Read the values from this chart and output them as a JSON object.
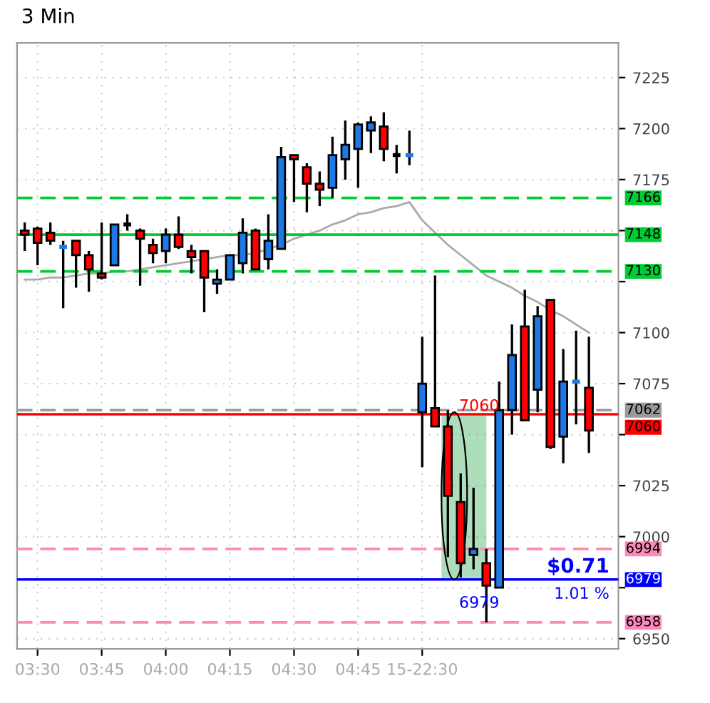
{
  "chart_data": {
    "type": "candlestick",
    "title": "3 Min",
    "categories": [
      null,
      "03:30",
      null,
      null,
      null,
      null,
      "03:45",
      null,
      null,
      null,
      null,
      "04:00",
      null,
      null,
      null,
      null,
      "04:15",
      null,
      null,
      null,
      null,
      "04:30",
      null,
      null,
      null,
      null,
      "04:45",
      null,
      null,
      null,
      null,
      "15-22:30",
      null,
      null,
      null,
      null,
      null,
      null,
      null,
      null,
      null,
      null,
      null,
      null,
      null
    ],
    "ohlc": [
      [
        7150,
        7154,
        7140,
        7148
      ],
      [
        7151,
        7152,
        7133,
        7144
      ],
      [
        7149,
        7154,
        7143,
        7145
      ],
      [
        7142,
        7145,
        7112,
        7142
      ],
      [
        7145,
        7145,
        7122,
        7138
      ],
      [
        7138,
        7140,
        7120,
        7131
      ],
      [
        7129,
        7154,
        7126,
        7127
      ],
      [
        7133,
        7153,
        7133,
        7153
      ],
      [
        7153,
        7158,
        7150,
        7153
      ],
      [
        7150,
        7151,
        7123,
        7146
      ],
      [
        7143,
        7146,
        7134,
        7139
      ],
      [
        7140,
        7151,
        7134,
        7148
      ],
      [
        7148,
        7157,
        7141,
        7142
      ],
      [
        7140,
        7143,
        7129,
        7137
      ],
      [
        7140,
        7140,
        7110,
        7127
      ],
      [
        7124,
        7131,
        7119,
        7126
      ],
      [
        7126,
        7138,
        7126,
        7138
      ],
      [
        7134,
        7156,
        7129,
        7149
      ],
      [
        7150,
        7151,
        7131,
        7131
      ],
      [
        7136,
        7158,
        7131,
        7145
      ],
      [
        7141,
        7191,
        7141,
        7186
      ],
      [
        7187,
        7187,
        7164,
        7185
      ],
      [
        7181,
        7183,
        7159,
        7173
      ],
      [
        7173,
        7179,
        7162,
        7170
      ],
      [
        7171,
        7196,
        7166,
        7187
      ],
      [
        7185,
        7204,
        7175,
        7192
      ],
      [
        7190,
        7203,
        7171,
        7202
      ],
      [
        7199,
        7206,
        7188,
        7203
      ],
      [
        7201,
        7208,
        7184,
        7190
      ],
      [
        7187,
        7192,
        7178,
        7187
      ],
      [
        7187,
        7199,
        7182,
        7187
      ],
      [
        7061,
        7098,
        7034,
        7075
      ],
      [
        7063,
        7128,
        7054,
        7054
      ],
      [
        7054,
        7062,
        6990,
        7020
      ],
      [
        7017,
        7031,
        6980,
        6987
      ],
      [
        6991,
        7024,
        6984,
        6994
      ],
      [
        6987,
        6994,
        6958,
        6976
      ],
      [
        6975,
        7076,
        6975,
        7062
      ],
      [
        7062,
        7104,
        7050,
        7089
      ],
      [
        7103,
        7121,
        7057,
        7057
      ],
      [
        7072,
        7113,
        7061,
        7108
      ],
      [
        7116,
        7116,
        7043,
        7044
      ],
      [
        7049,
        7092,
        7036,
        7076
      ],
      [
        7076,
        7101,
        7055,
        7076
      ],
      [
        7073,
        7098,
        7041,
        7052
      ]
    ],
    "colors": [
      "#ff0000",
      "#ff0000",
      "#ff0000",
      "#1e78e6",
      "#ff0000",
      "#ff0000",
      "#ff0000",
      "#1e78e6",
      "#000000",
      "#ff0000",
      "#ff0000",
      "#1e78e6",
      "#ff0000",
      "#ff0000",
      "#ff0000",
      "#1e78e6",
      "#1e78e6",
      "#1e78e6",
      "#ff0000",
      "#1e78e6",
      "#1e78e6",
      "#ff0000",
      "#ff0000",
      "#ff0000",
      "#1e78e6",
      "#1e78e6",
      "#1e78e6",
      "#1e78e6",
      "#ff0000",
      "#000000",
      "#1e78e6",
      "#1e78e6",
      "#ff0000",
      "#ff0000",
      "#ff0000",
      "#1e78e6",
      "#ff0000",
      "#1e78e6",
      "#1e78e6",
      "#ff0000",
      "#1e78e6",
      "#ff0000",
      "#1e78e6",
      "#1e78e6",
      "#ff0000"
    ],
    "series": [
      {
        "type": "line",
        "color": "#aaaaaa",
        "values": [
          7126,
          7126,
          7127,
          7127,
          7128,
          7129,
          7129,
          7130,
          7130,
          7131,
          7132,
          7133,
          7134,
          7135,
          7136,
          7137,
          7138,
          7138,
          7139,
          7141,
          7143,
          7146,
          7148,
          7150,
          7153,
          7155,
          7158,
          7159,
          7161,
          7162,
          7164,
          7155,
          7149,
          7143,
          7138,
          7133,
          7128,
          7125,
          7122,
          7118,
          7115,
          7111,
          7108,
          7104,
          7100
        ]
      }
    ],
    "ylim": [
      6945,
      7242
    ],
    "yticks": [
      6950,
      {
        "value": 6975,
        "label": null
      },
      7000,
      7025,
      {
        "value": 7050,
        "label": null
      },
      7075,
      7100,
      {
        "value": 7125,
        "label": null
      },
      {
        "value": 7150,
        "label": null
      },
      7175,
      7200,
      7225
    ],
    "grid": true,
    "ref_lines": [
      {
        "axis": "y",
        "value": 7166,
        "label": "7166",
        "color": "#00cc33",
        "line_style": "dashed"
      },
      {
        "axis": "y",
        "value": 7148,
        "label": "7148",
        "color": "#00cc33",
        "line_style": "solid"
      },
      {
        "axis": "y",
        "value": 7130,
        "label": "7130",
        "color": "#00cc33",
        "line_style": "dashed"
      },
      {
        "axis": "y",
        "value": 7062,
        "label": "7062",
        "color": "#999999",
        "line_style": "dashed"
      },
      {
        "axis": "y",
        "value": 7060,
        "label": "7060",
        "color": "#ff0000",
        "line_style": "solid"
      },
      {
        "axis": "y",
        "value": 6994,
        "label": "6994",
        "color": "#ff88bb",
        "line_style": "dashed"
      },
      {
        "axis": "y",
        "value": 6979,
        "label": "6979",
        "color": "#0000ff",
        "line_style": "solid"
      },
      {
        "axis": "y",
        "value": 6958,
        "label": "6958",
        "color": "#ff88bb",
        "line_style": "dashed"
      }
    ],
    "annotations": [
      "7060",
      "6979",
      "$0.71",
      "1.01 %"
    ]
  }
}
